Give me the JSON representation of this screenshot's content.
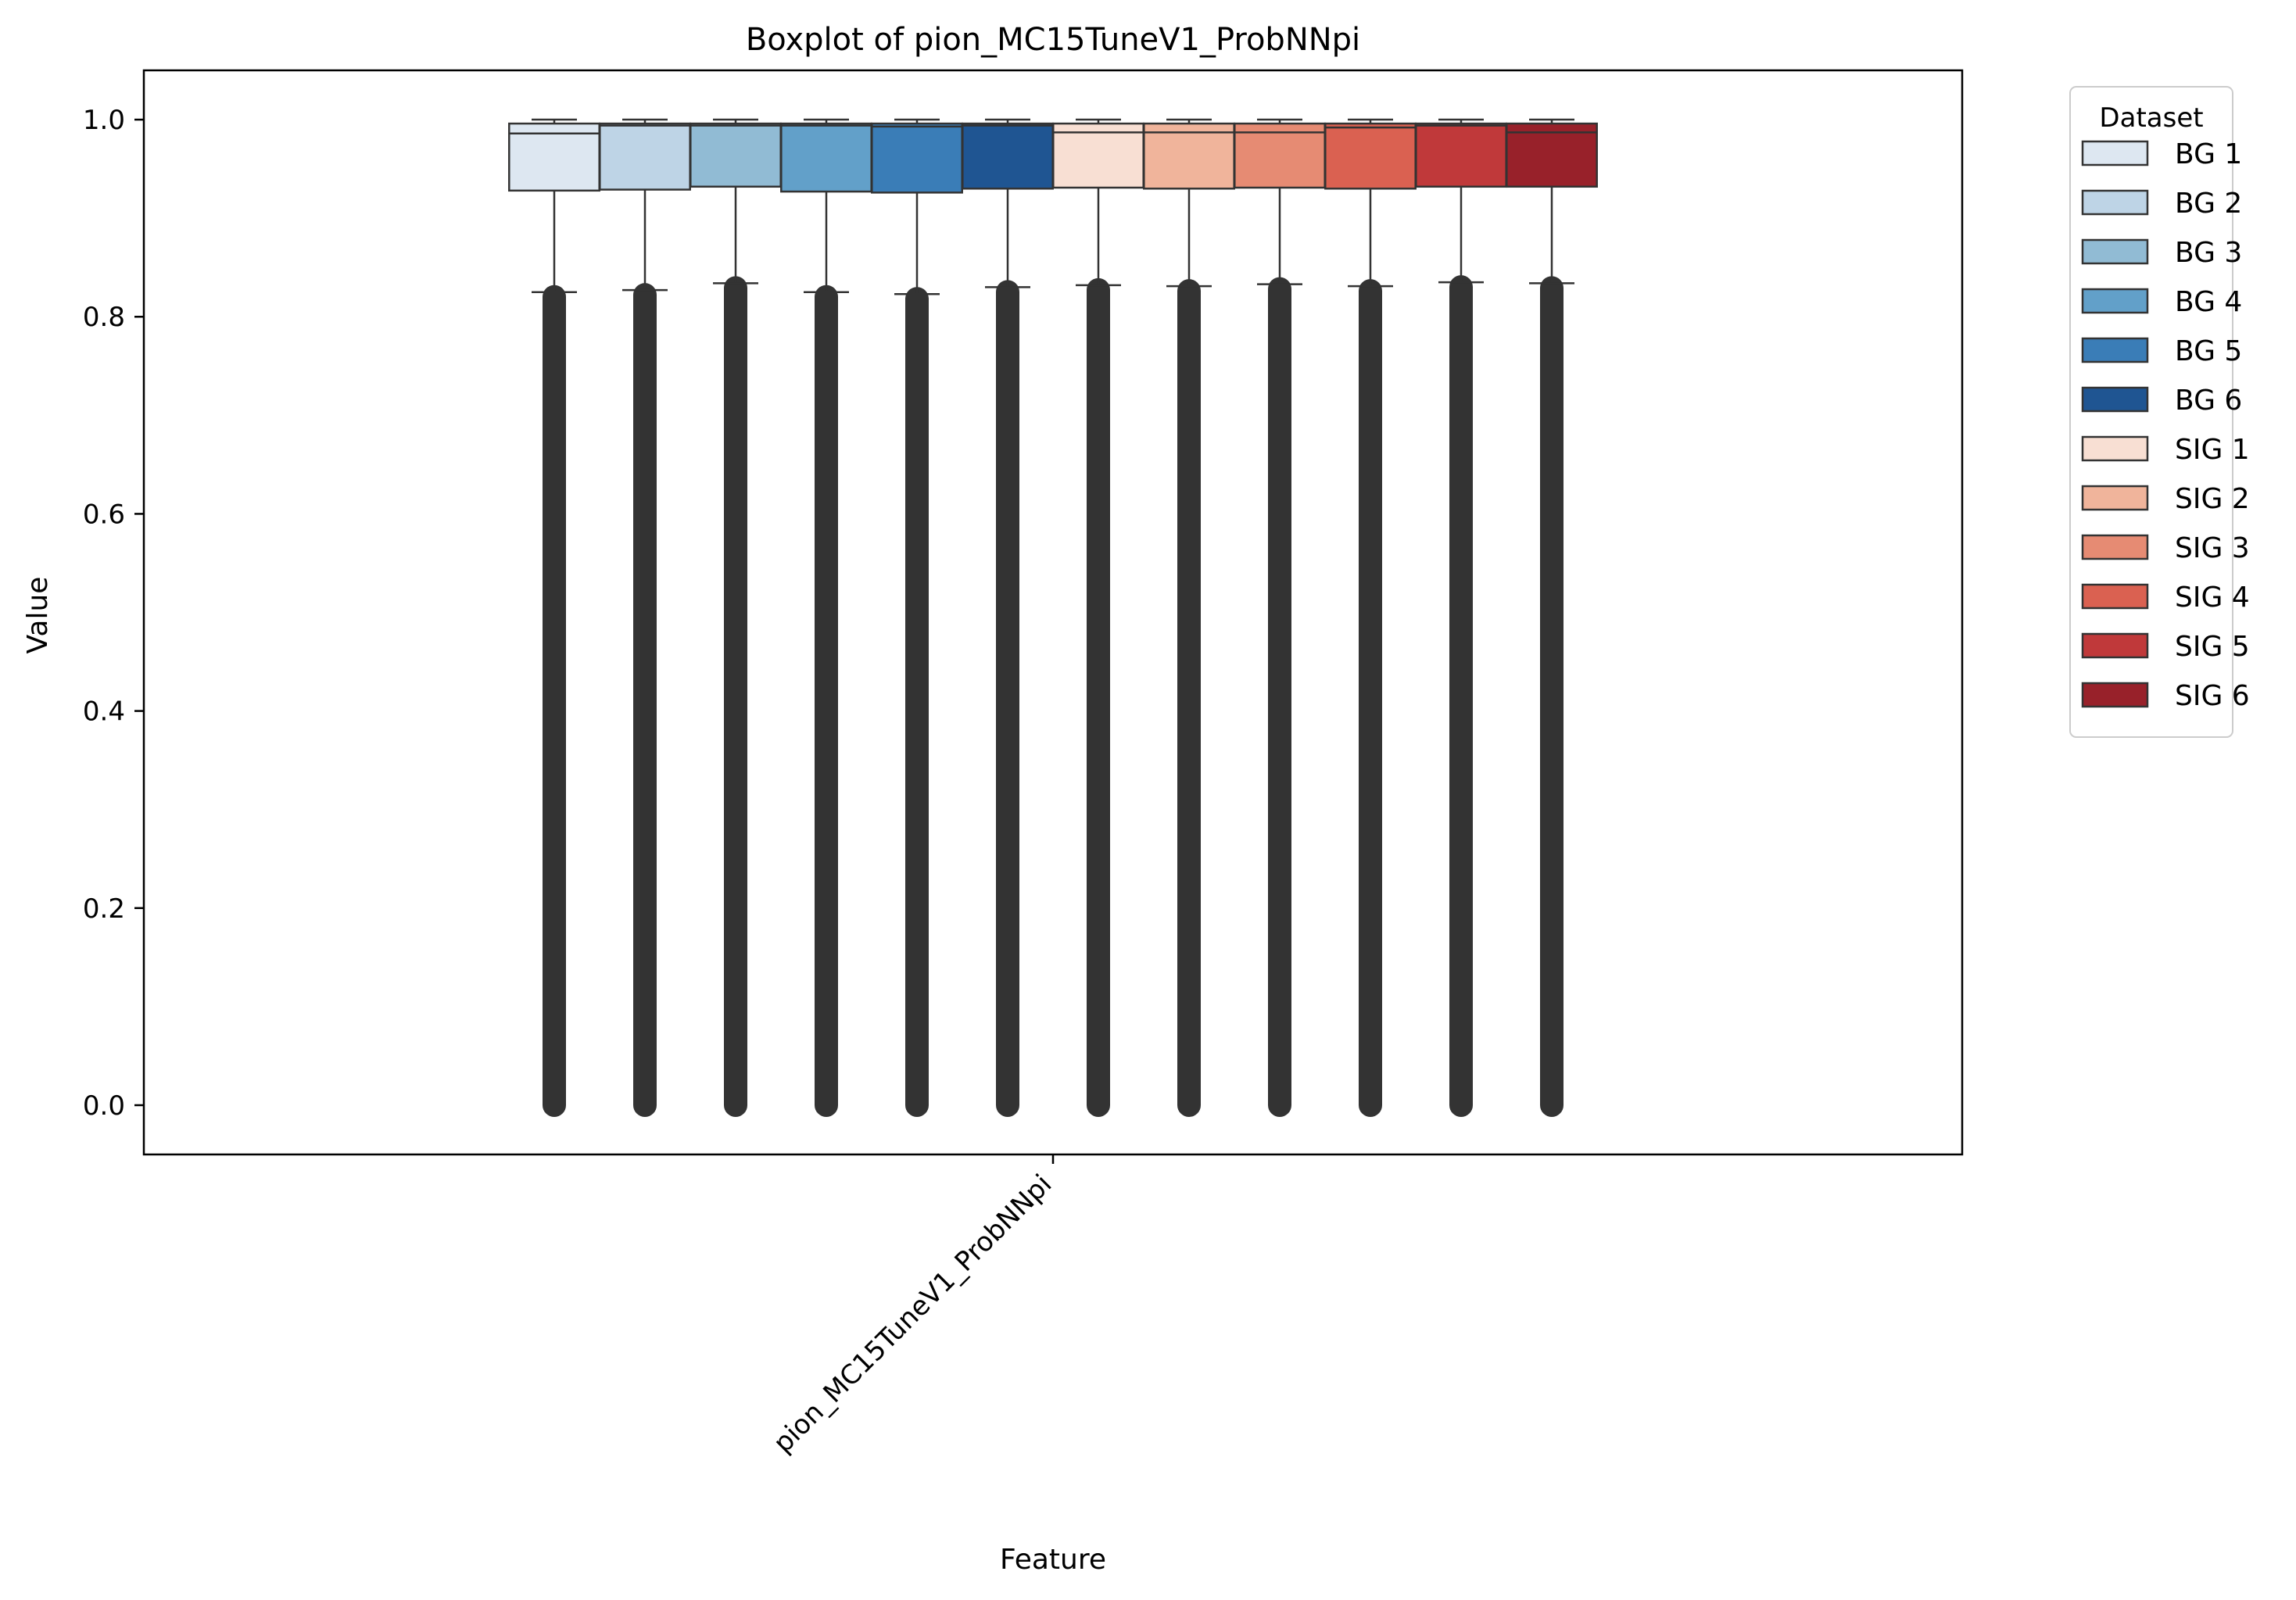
{
  "chart_data": {
    "type": "box",
    "title": "Boxplot of pion_MC15TuneV1_ProbNNpi",
    "xlabel": "Feature",
    "ylabel": "Value",
    "categories": [
      "pion_MC15TuneV1_ProbNNpi"
    ],
    "ylim": [
      -0.05,
      1.05
    ],
    "yticks": [
      "0.0",
      "0.2",
      "0.4",
      "0.6",
      "0.8",
      "1.0"
    ],
    "yticks_values": [
      0.0,
      0.2,
      0.4,
      0.6,
      0.8,
      1.0
    ],
    "grid": false,
    "legend": {
      "title": "Dataset",
      "position": "outside-right-top"
    },
    "series": [
      {
        "name": "BG 1",
        "color": "#dde7f1",
        "q1": 0.928,
        "median": 0.986,
        "q3": 0.996,
        "whisker_low": 0.825,
        "whisker_high": 1.0,
        "outliers_range": [
          0.0,
          0.825
        ]
      },
      {
        "name": "BG 2",
        "color": "#bed4e6",
        "q1": 0.929,
        "median": 0.994,
        "q3": 0.996,
        "whisker_low": 0.827,
        "whisker_high": 1.0,
        "outliers_range": [
          0.0,
          0.827
        ]
      },
      {
        "name": "BG 3",
        "color": "#91bbd4",
        "q1": 0.932,
        "median": 0.994,
        "q3": 0.996,
        "whisker_low": 0.834,
        "whisker_high": 1.0,
        "outliers_range": [
          0.0,
          0.834
        ]
      },
      {
        "name": "BG 4",
        "color": "#62a0c9",
        "q1": 0.927,
        "median": 0.994,
        "q3": 0.996,
        "whisker_low": 0.825,
        "whisker_high": 1.0,
        "outliers_range": [
          0.0,
          0.825
        ]
      },
      {
        "name": "BG 5",
        "color": "#3a7db7",
        "q1": 0.926,
        "median": 0.993,
        "q3": 0.996,
        "whisker_low": 0.823,
        "whisker_high": 1.0,
        "outliers_range": [
          0.0,
          0.823
        ]
      },
      {
        "name": "BG 6",
        "color": "#1f5592",
        "q1": 0.93,
        "median": 0.994,
        "q3": 0.996,
        "whisker_low": 0.83,
        "whisker_high": 1.0,
        "outliers_range": [
          0.0,
          0.83
        ]
      },
      {
        "name": "SIG 1",
        "color": "#f8dfd3",
        "q1": 0.931,
        "median": 0.987,
        "q3": 0.996,
        "whisker_low": 0.832,
        "whisker_high": 1.0,
        "outliers_range": [
          0.0,
          0.832
        ]
      },
      {
        "name": "SIG 2",
        "color": "#f0b49b",
        "q1": 0.93,
        "median": 0.987,
        "q3": 0.996,
        "whisker_low": 0.831,
        "whisker_high": 1.0,
        "outliers_range": [
          0.0,
          0.831
        ]
      },
      {
        "name": "SIG 3",
        "color": "#e68b73",
        "q1": 0.931,
        "median": 0.987,
        "q3": 0.996,
        "whisker_low": 0.833,
        "whisker_high": 1.0,
        "outliers_range": [
          0.0,
          0.833
        ]
      },
      {
        "name": "SIG 4",
        "color": "#da6151",
        "q1": 0.93,
        "median": 0.992,
        "q3": 0.996,
        "whisker_low": 0.831,
        "whisker_high": 1.0,
        "outliers_range": [
          0.0,
          0.831
        ]
      },
      {
        "name": "SIG 5",
        "color": "#c0393a",
        "q1": 0.932,
        "median": 0.994,
        "q3": 0.996,
        "whisker_low": 0.835,
        "whisker_high": 1.0,
        "outliers_range": [
          0.0,
          0.835
        ]
      },
      {
        "name": "SIG 6",
        "color": "#98212a",
        "q1": 0.932,
        "median": 0.987,
        "q3": 0.996,
        "whisker_low": 0.834,
        "whisker_high": 1.0,
        "outliers_range": [
          0.0,
          0.834
        ]
      }
    ]
  }
}
